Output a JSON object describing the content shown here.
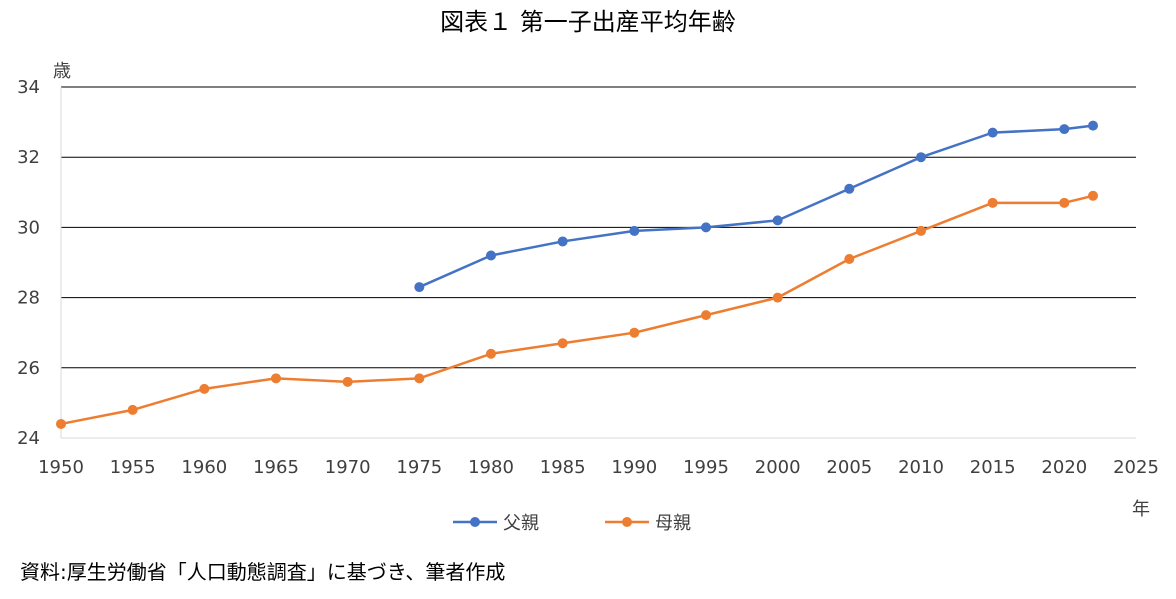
{
  "chart_data": {
    "type": "line",
    "title": "図表１ 第一子出産平均年齢",
    "y_unit_label": "歳",
    "x_unit_label": "年",
    "source_note": "資料:厚生労働省「人口動態調査」に基づき、筆者作成",
    "xlim": [
      1950,
      2025
    ],
    "ylim": [
      24,
      34
    ],
    "x_ticks": [
      "1950",
      "1955",
      "1960",
      "1965",
      "1970",
      "1975",
      "1980",
      "1985",
      "1990",
      "1995",
      "2000",
      "2005",
      "2010",
      "2015",
      "2020",
      "2025"
    ],
    "y_ticks": [
      "24",
      "26",
      "28",
      "30",
      "32",
      "34"
    ],
    "grid": true,
    "legend_position": "bottom",
    "series": [
      {
        "name": "父親",
        "color": "#4472C4",
        "points": [
          {
            "x": 1975,
            "y": 28.3
          },
          {
            "x": 1980,
            "y": 29.2
          },
          {
            "x": 1985,
            "y": 29.6
          },
          {
            "x": 1990,
            "y": 29.9
          },
          {
            "x": 1995,
            "y": 30.0
          },
          {
            "x": 2000,
            "y": 30.2
          },
          {
            "x": 2005,
            "y": 31.1
          },
          {
            "x": 2010,
            "y": 32.0
          },
          {
            "x": 2015,
            "y": 32.7
          },
          {
            "x": 2020,
            "y": 32.8
          },
          {
            "x": 2022,
            "y": 32.9
          }
        ]
      },
      {
        "name": "母親",
        "color": "#ED7D31",
        "points": [
          {
            "x": 1950,
            "y": 24.4
          },
          {
            "x": 1955,
            "y": 24.8
          },
          {
            "x": 1960,
            "y": 25.4
          },
          {
            "x": 1965,
            "y": 25.7
          },
          {
            "x": 1970,
            "y": 25.6
          },
          {
            "x": 1975,
            "y": 25.7
          },
          {
            "x": 1980,
            "y": 26.4
          },
          {
            "x": 1985,
            "y": 26.7
          },
          {
            "x": 1990,
            "y": 27.0
          },
          {
            "x": 1995,
            "y": 27.5
          },
          {
            "x": 2000,
            "y": 28.0
          },
          {
            "x": 2005,
            "y": 29.1
          },
          {
            "x": 2010,
            "y": 29.9
          },
          {
            "x": 2015,
            "y": 30.7
          },
          {
            "x": 2020,
            "y": 30.7
          },
          {
            "x": 2022,
            "y": 30.9
          }
        ]
      }
    ]
  }
}
